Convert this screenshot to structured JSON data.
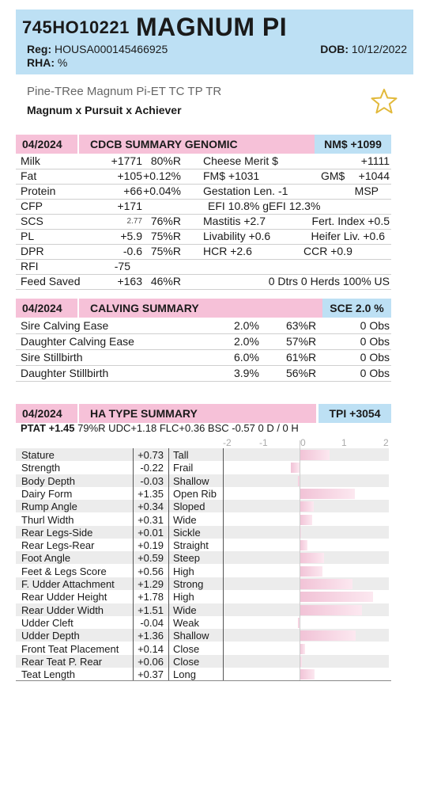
{
  "header": {
    "code": "745HO10221",
    "name": "MAGNUM PI",
    "reg_label": "Reg:",
    "reg_value": "HOUSA000145466925",
    "rha_label": "RHA:",
    "rha_value": "%",
    "dob_label": "DOB:",
    "dob_value": "10/12/2022"
  },
  "long_name": "Pine-TRee Magnum Pi-ET  TC TP TR",
  "pedigree": "Magnum x Pursuit x Achiever",
  "genomic": {
    "date": "04/2024",
    "title": "CDCB SUMMARY GENOMIC",
    "badge": "NM$ +1099",
    "rows": [
      {
        "label": "Milk",
        "value": "+1771",
        "rel": "80%R",
        "label2": "Cheese Merit $",
        "value2": "+1111"
      },
      {
        "label": "Fat",
        "value": "+105",
        "pct": "+0.12%",
        "label2": "FM$ +1031",
        "label3": "GM$",
        "value2": "+1044"
      },
      {
        "label": "Protein",
        "value": "+66",
        "pct": "+0.04%",
        "label2": "Gestation Len. -1",
        "value2": "MSP"
      },
      {
        "label": "CFP",
        "value": "+171",
        "label2": "EFI  10.8%  gEFI  12.3%"
      },
      {
        "label": "SCS",
        "value": "2.77",
        "rel": "76%R",
        "label2": "Mastitis  +2.7",
        "label3": "Fert. Index  +0.5"
      },
      {
        "label": "PL",
        "value": "+5.9",
        "rel": "75%R",
        "label2": "Livability  +0.6",
        "label3": "Heifer Liv.  +0.6"
      },
      {
        "label": "DPR",
        "value": "-0.6",
        "rel": "75%R",
        "label2": "HCR   +2.6",
        "label3": "CCR  +0.9"
      },
      {
        "label": "RFI",
        "value": "-75"
      },
      {
        "label": "Feed Saved",
        "value": "+163",
        "rel": "46%R",
        "value2": "0 Dtrs  0 Herds  100% US"
      }
    ]
  },
  "calving": {
    "date": "04/2024",
    "title": "CALVING SUMMARY",
    "badge": "SCE 2.0 %",
    "rows": [
      {
        "label": "Sire Calving Ease",
        "pct": "2.0%",
        "rel": "63%R",
        "obs": "0 Obs"
      },
      {
        "label": "Daughter Calving Ease",
        "pct": "2.0%",
        "rel": "57%R",
        "obs": "0 Obs"
      },
      {
        "label": "Sire Stillbirth",
        "pct": "6.0%",
        "rel": "61%R",
        "obs": "0 Obs"
      },
      {
        "label": "Daughter Stillbirth",
        "pct": "3.9%",
        "rel": "56%R",
        "obs": "0 Obs"
      }
    ]
  },
  "type": {
    "date": "04/2024",
    "title": "HA TYPE SUMMARY",
    "badge": "TPI +3054",
    "ptat_label": "PTAT +1.45",
    "ptat_rest": "79%R  UDC+1.18  FLC+0.36  BSC -0.57  0 D /  0 H",
    "axis_ticks": [
      "-2",
      "-1",
      "0",
      "1",
      "2"
    ]
  },
  "chart_data": {
    "type": "bar",
    "orientation": "horizontal",
    "xlim": [
      -2,
      2
    ],
    "categories": [
      "Stature",
      "Strength",
      "Body Depth",
      "Dairy Form",
      "Rump Angle",
      "Thurl Width",
      "Rear Legs-Side",
      "Rear Legs-Rear",
      "Foot Angle",
      "Feet & Legs Score",
      "F. Udder Attachment",
      "Rear Udder Height",
      "Rear Udder Width",
      "Udder Cleft",
      "Udder Depth",
      "Front Teat Placement",
      "Rear Teat P. Rear",
      "Teat Length"
    ],
    "value_labels": [
      "+0.73",
      "-0.22",
      "-0.03",
      "+1.35",
      "+0.34",
      "+0.31",
      "+0.01",
      "+0.19",
      "+0.59",
      "+0.56",
      "+1.29",
      "+1.78",
      "+1.51",
      "-0.04",
      "+1.36",
      "+0.14",
      "+0.06",
      "+0.37"
    ],
    "values": [
      0.73,
      -0.22,
      -0.03,
      1.35,
      0.34,
      0.31,
      0.01,
      0.19,
      0.59,
      0.56,
      1.29,
      1.78,
      1.51,
      -0.04,
      1.36,
      0.14,
      0.06,
      0.37
    ],
    "descriptors": [
      "Tall",
      "Frail",
      "Shallow",
      "Open Rib",
      "Sloped",
      "Wide",
      "Sickle",
      "Straight",
      "Steep",
      "High",
      "Strong",
      "High",
      "Wide",
      "Weak",
      "Shallow",
      "Close",
      "Close",
      "Long"
    ],
    "bar_color": "#f1c2d6"
  }
}
